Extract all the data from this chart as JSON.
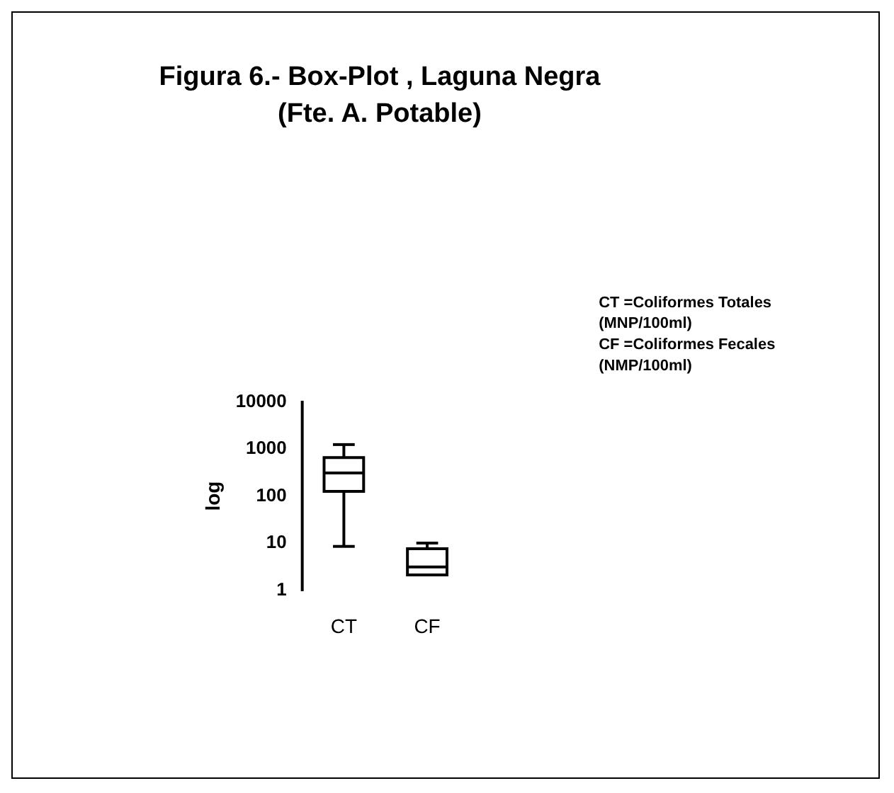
{
  "chart_data": {
    "type": "box",
    "title": "Figura 6.- Box-Plot , Laguna Negra",
    "subtitle": "(Fte. A. Potable)",
    "ylabel": "log",
    "categories": [
      "CT",
      "CF"
    ],
    "boxes": [
      {
        "low": 8.5,
        "q1": 126,
        "median": 310,
        "q3": 660,
        "high": 1250
      },
      {
        "low": 2.1,
        "q1": 2.1,
        "median": 3.1,
        "q3": 7.6,
        "high": 10
      }
    ],
    "color": "#ffffff",
    "log": "y",
    "ylim": [
      1,
      10000
    ],
    "yticks": [
      1,
      10,
      100,
      1000,
      10000
    ],
    "grid": false,
    "legend": false,
    "annotations": [
      "CT =Coliformes Totales (MNP/100ml)",
      "CF =Coliformes Fecales (NMP/100ml)"
    ]
  }
}
